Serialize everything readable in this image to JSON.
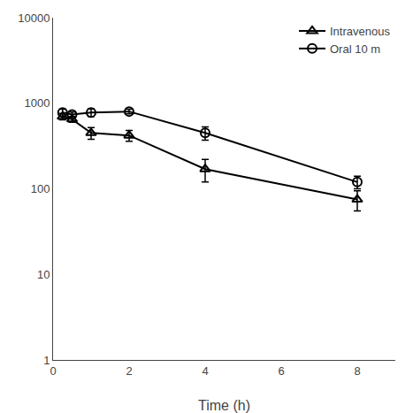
{
  "chart_data": {
    "type": "line",
    "xlabel": "Time (h)",
    "x": [
      0.25,
      0.5,
      1.0,
      2.0,
      4.0,
      8.0
    ],
    "series": [
      {
        "name": "Intravenous",
        "color": "#000000",
        "marker": "triangle",
        "line_style": "solid",
        "values": [
          700,
          650,
          450,
          420,
          170,
          75
        ],
        "yerr_low": [
          60,
          50,
          70,
          60,
          50,
          20
        ],
        "yerr_high": [
          60,
          50,
          70,
          60,
          50,
          20
        ]
      },
      {
        "name": "Oral 10 m",
        "color": "#000000",
        "marker": "circle",
        "line_style": "solid",
        "values": [
          780,
          740,
          780,
          800,
          450,
          120
        ],
        "yerr_low": [
          70,
          50,
          80,
          50,
          80,
          20
        ],
        "yerr_high": [
          70,
          50,
          80,
          50,
          80,
          20
        ]
      }
    ],
    "xlim": [
      0,
      9
    ],
    "xticks": [
      0,
      2,
      4,
      6,
      8
    ],
    "ylim": [
      1,
      10000
    ],
    "yticks": [
      1,
      10,
      100,
      1000,
      10000
    ],
    "log": "y",
    "grid": false,
    "legend": "upper right"
  }
}
